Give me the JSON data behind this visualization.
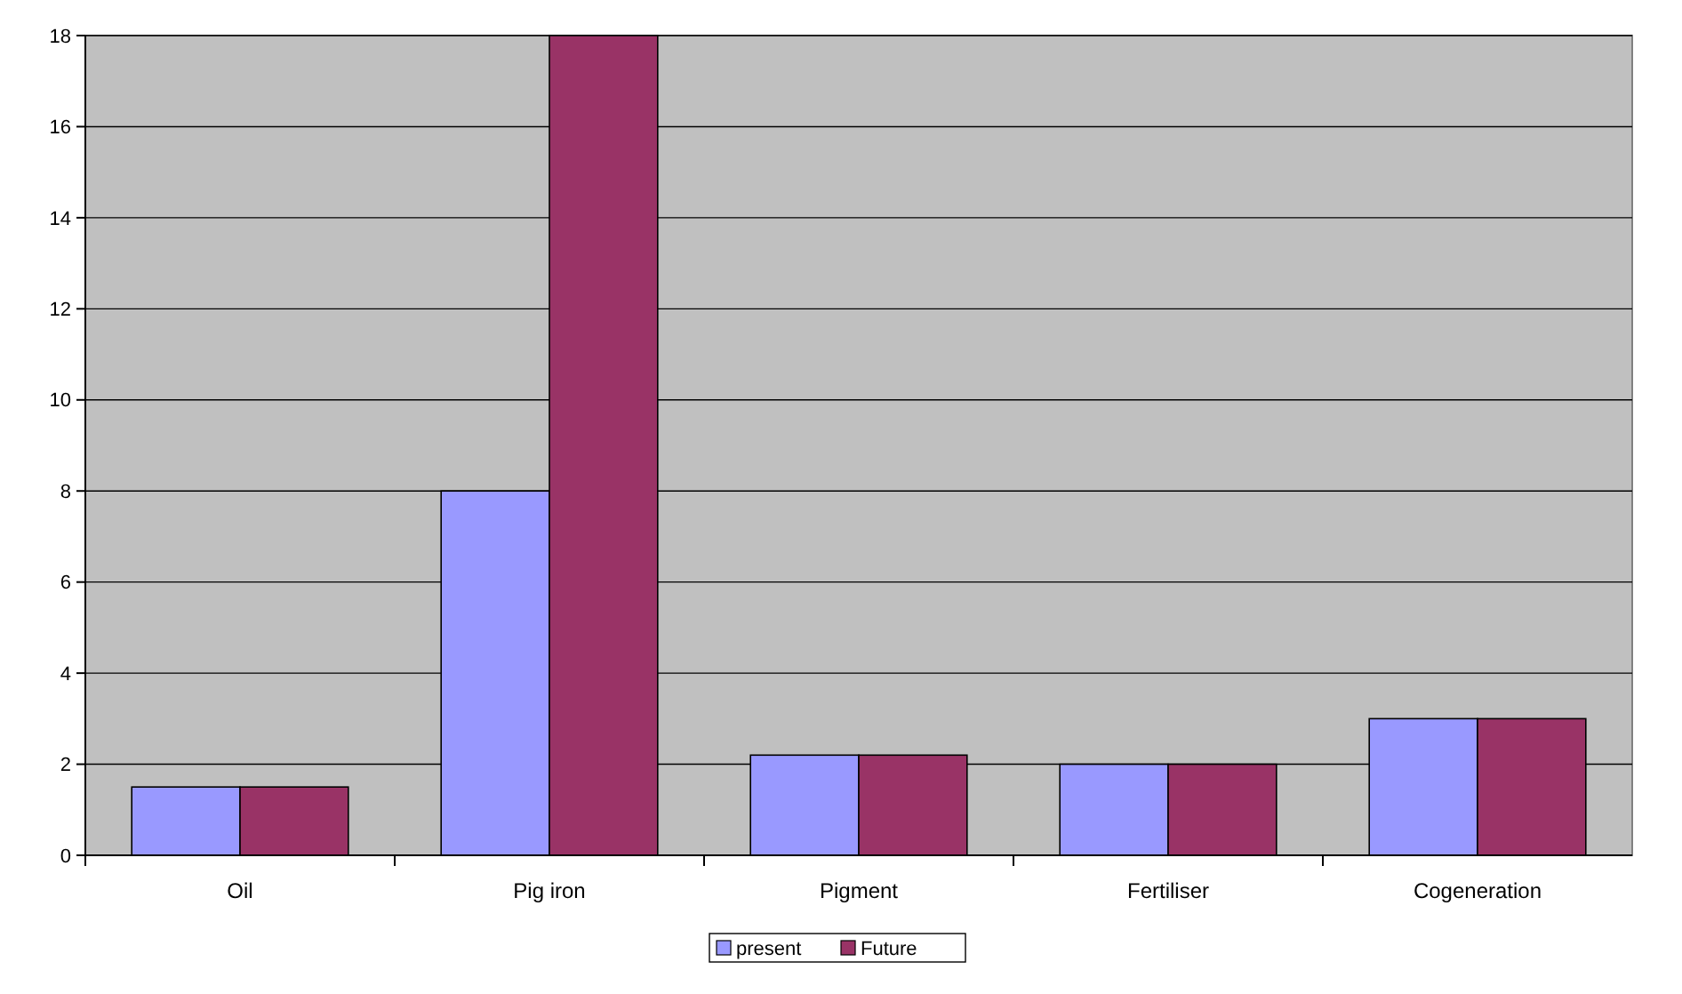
{
  "chart_data": {
    "type": "bar",
    "categories": [
      "Oil",
      "Pig iron",
      "Pigment",
      "Fertiliser",
      "Cogeneration"
    ],
    "series": [
      {
        "name": "present",
        "color": "#9999ff",
        "values": [
          1.5,
          8,
          2.2,
          2,
          3
        ]
      },
      {
        "name": "Future",
        "color": "#993366",
        "values": [
          1.5,
          18,
          2.2,
          2,
          3
        ]
      }
    ],
    "ylim": [
      0,
      18
    ],
    "yticks": [
      0,
      2,
      4,
      6,
      8,
      10,
      12,
      14,
      16,
      18
    ],
    "grid": "y",
    "legend": "bottom"
  }
}
